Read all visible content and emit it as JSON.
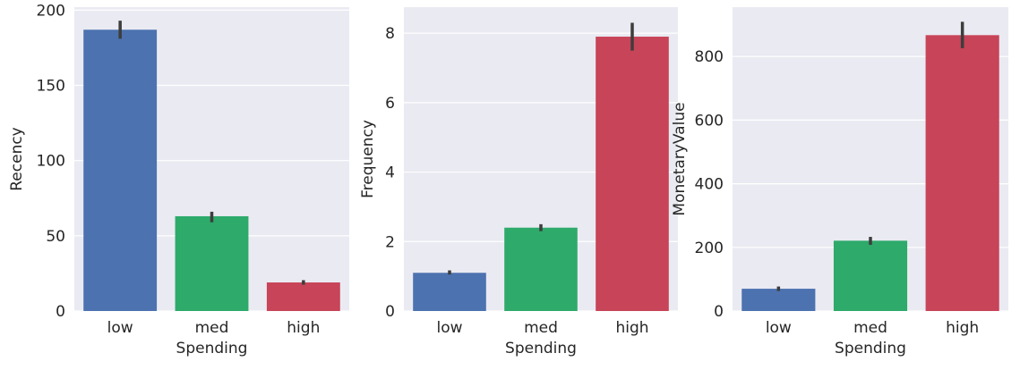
{
  "figure": {
    "background": "#ffffff",
    "axes_facecolor": "#eaeaf2",
    "grid_color": "#ffffff",
    "errorbar_color": "#3d3d3d"
  },
  "chart_data": [
    {
      "type": "bar",
      "categories": [
        "low",
        "med",
        "high"
      ],
      "colors": [
        "#4c72b0",
        "#2eaa6a",
        "#c84458"
      ],
      "values": [
        187,
        63,
        19
      ],
      "error_low": [
        181,
        59,
        17.5
      ],
      "error_high": [
        193,
        66,
        20.5
      ],
      "xlabel": "Spending",
      "ylabel": "Recency",
      "ylim": [
        0,
        202
      ],
      "yticks": [
        0,
        50,
        100,
        150,
        200
      ],
      "grid": true
    },
    {
      "type": "bar",
      "categories": [
        "low",
        "med",
        "high"
      ],
      "colors": [
        "#4c72b0",
        "#2eaa6a",
        "#c84458"
      ],
      "values": [
        1.1,
        2.4,
        7.9
      ],
      "error_low": [
        1.05,
        2.3,
        7.5
      ],
      "error_high": [
        1.17,
        2.5,
        8.3
      ],
      "xlabel": "Spending",
      "ylabel": "Frequency",
      "ylim": [
        0,
        8.75
      ],
      "yticks": [
        0,
        2,
        4,
        6,
        8
      ],
      "grid": true
    },
    {
      "type": "bar",
      "categories": [
        "low",
        "med",
        "high"
      ],
      "colors": [
        "#4c72b0",
        "#2eaa6a",
        "#c84458"
      ],
      "values": [
        70,
        221,
        867
      ],
      "error_low": [
        63,
        208,
        826
      ],
      "error_high": [
        77,
        233,
        909
      ],
      "xlabel": "Spending",
      "ylabel": "MonetaryValue",
      "ylim": [
        0,
        955
      ],
      "yticks": [
        0,
        200,
        400,
        600,
        800
      ],
      "grid": true
    }
  ]
}
